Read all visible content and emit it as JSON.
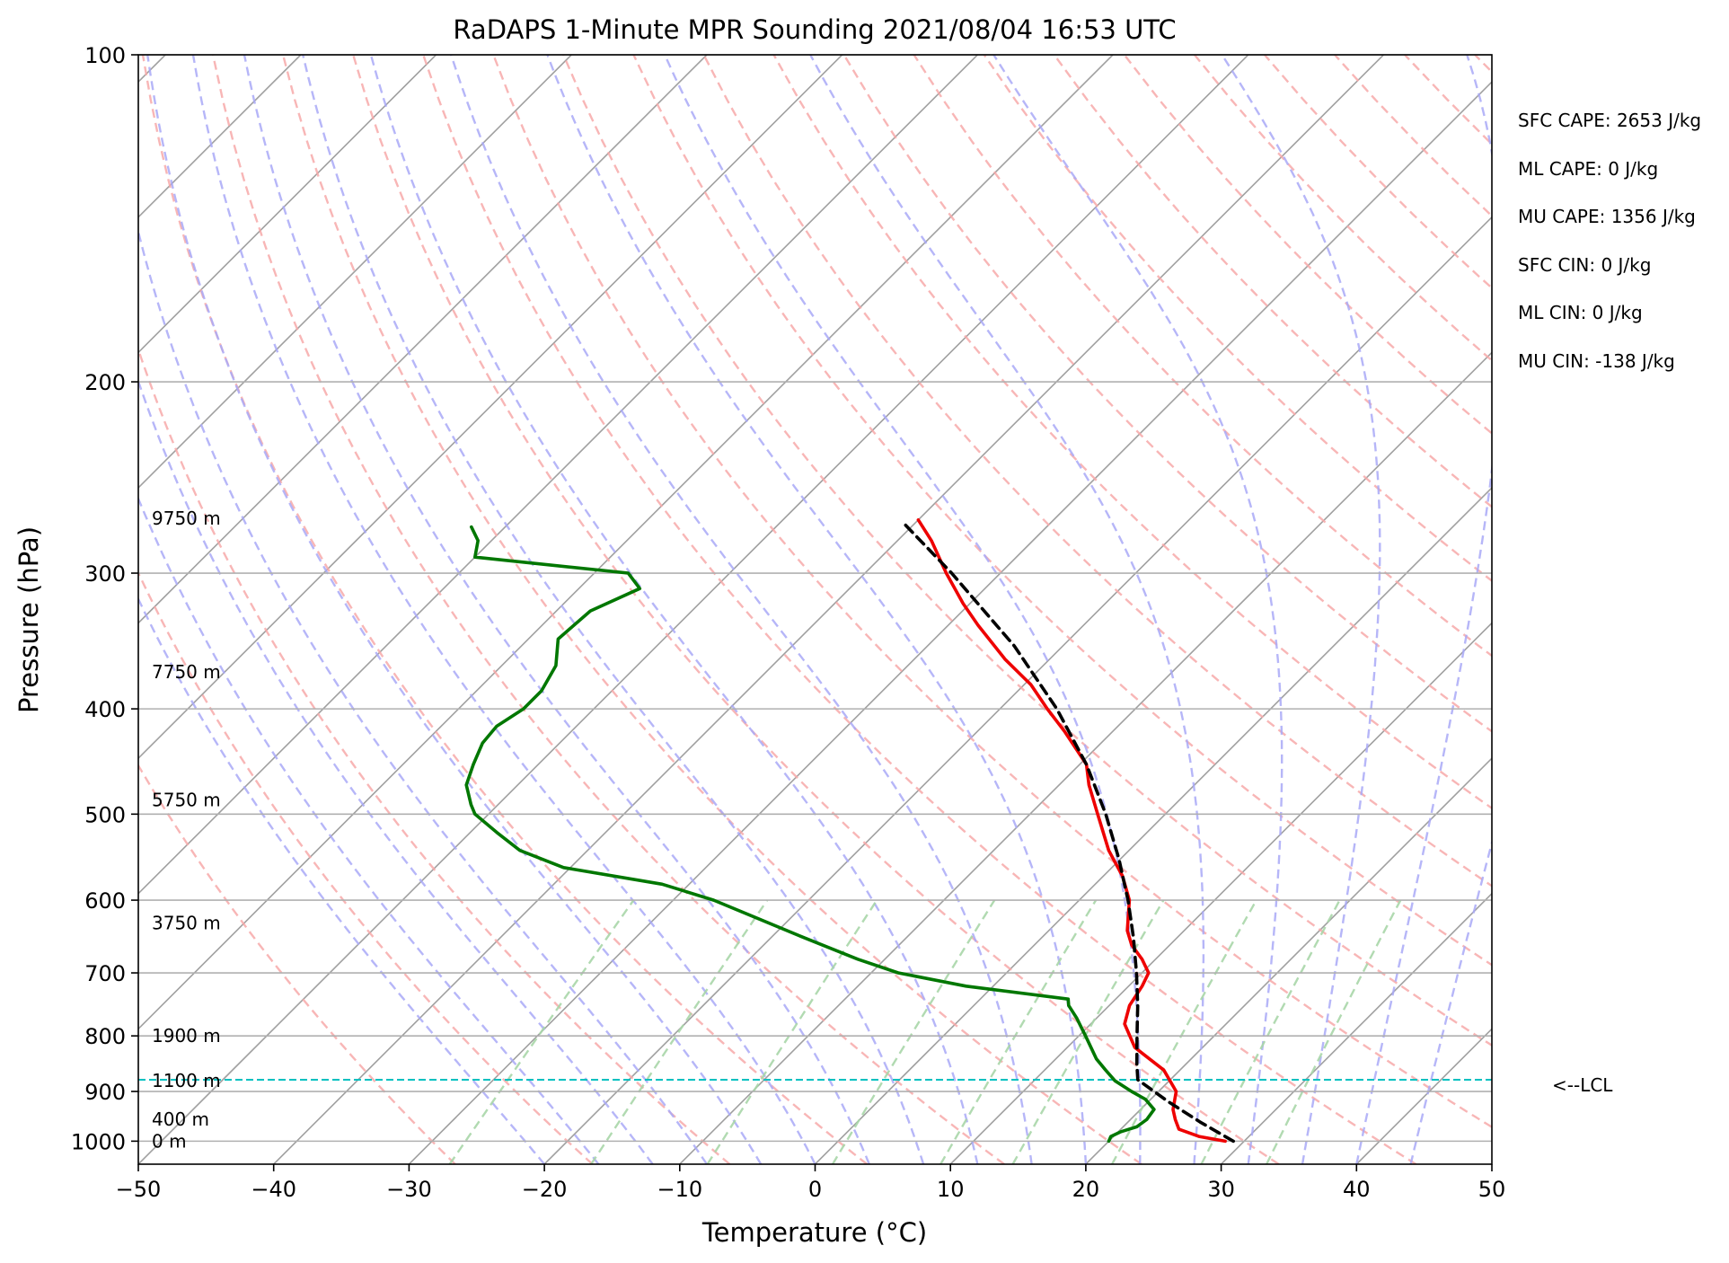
{
  "chart_data": {
    "type": "line",
    "title": "RaDAPS 1-Minute MPR Sounding 2021/08/04 16:53 UTC",
    "xlabel": "Temperature (°C)",
    "ylabel": "Pressure (hPa)",
    "xlim": [
      -50,
      50
    ],
    "ylim": [
      1050,
      100
    ],
    "y_scale": "log",
    "skew": true,
    "x_ticks": [
      -50,
      -40,
      -30,
      -20,
      -10,
      0,
      10,
      20,
      30,
      40,
      50
    ],
    "y_ticks": [
      100,
      200,
      300,
      400,
      500,
      600,
      700,
      800,
      900,
      1000
    ],
    "x_tick_labels": [
      "−50",
      "−40",
      "−30",
      "−20",
      "−10",
      "0",
      "10",
      "20",
      "30",
      "40",
      "50"
    ],
    "y_tick_labels": [
      "100",
      "200",
      "300",
      "400",
      "500",
      "600",
      "700",
      "800",
      "900",
      "1000"
    ],
    "grid": true,
    "colors": {
      "temperature": "#ee0000",
      "dewpoint": "#007700",
      "parcel": "#000000",
      "isotherm": "#a0a0a0",
      "dry_adiabat": "#f7a9a9",
      "moist_adiabat": "#a9a9f7",
      "mixing_ratio": "#a9d6a9",
      "lcl": "#00c0c0"
    },
    "series": [
      {
        "kind": "temperature",
        "points": [
          {
            "p": 1000,
            "t": 28.6
          },
          {
            "p": 990,
            "t": 26.3
          },
          {
            "p": 975,
            "t": 24.3
          },
          {
            "p": 955,
            "t": 23.3
          },
          {
            "p": 935,
            "t": 22.4
          },
          {
            "p": 900,
            "t": 21.3
          },
          {
            "p": 860,
            "t": 18.8
          },
          {
            "p": 820,
            "t": 15.0
          },
          {
            "p": 780,
            "t": 12.5
          },
          {
            "p": 750,
            "t": 11.5
          },
          {
            "p": 720,
            "t": 11.0
          },
          {
            "p": 700,
            "t": 10.5
          },
          {
            "p": 680,
            "t": 9.0
          },
          {
            "p": 660,
            "t": 7.2
          },
          {
            "p": 640,
            "t": 5.8
          },
          {
            "p": 600,
            "t": 3.7
          },
          {
            "p": 570,
            "t": 1.4
          },
          {
            "p": 540,
            "t": -1.5
          },
          {
            "p": 500,
            "t": -5.0
          },
          {
            "p": 470,
            "t": -7.8
          },
          {
            "p": 450,
            "t": -9.5
          },
          {
            "p": 420,
            "t": -13.5
          },
          {
            "p": 400,
            "t": -16.5
          },
          {
            "p": 380,
            "t": -19.5
          },
          {
            "p": 360,
            "t": -23.3
          },
          {
            "p": 335,
            "t": -27.8
          },
          {
            "p": 320,
            "t": -30.5
          },
          {
            "p": 300,
            "t": -34.0
          },
          {
            "p": 280,
            "t": -37.5
          },
          {
            "p": 268,
            "t": -40.0
          }
        ]
      },
      {
        "kind": "dewpoint",
        "points": [
          {
            "p": 1000,
            "t": 20.0
          },
          {
            "p": 990,
            "t": 19.8
          },
          {
            "p": 980,
            "t": 20.2
          },
          {
            "p": 970,
            "t": 21.0
          },
          {
            "p": 955,
            "t": 21.2
          },
          {
            "p": 935,
            "t": 21.0
          },
          {
            "p": 915,
            "t": 19.6
          },
          {
            "p": 900,
            "t": 18.0
          },
          {
            "p": 880,
            "t": 16.0
          },
          {
            "p": 860,
            "t": 14.5
          },
          {
            "p": 840,
            "t": 13.0
          },
          {
            "p": 800,
            "t": 10.5
          },
          {
            "p": 770,
            "t": 8.5
          },
          {
            "p": 750,
            "t": 7.0
          },
          {
            "p": 740,
            "t": 6.5
          },
          {
            "p": 720,
            "t": -2.0
          },
          {
            "p": 700,
            "t": -8.0
          },
          {
            "p": 680,
            "t": -12.0
          },
          {
            "p": 650,
            "t": -17.5
          },
          {
            "p": 600,
            "t": -27.0
          },
          {
            "p": 580,
            "t": -32.0
          },
          {
            "p": 560,
            "t": -40.5
          },
          {
            "p": 540,
            "t": -45.0
          },
          {
            "p": 520,
            "t": -48.0
          },
          {
            "p": 500,
            "t": -51.0
          },
          {
            "p": 490,
            "t": -52.0
          },
          {
            "p": 470,
            "t": -53.8
          },
          {
            "p": 450,
            "t": -54.8
          },
          {
            "p": 430,
            "t": -55.7
          },
          {
            "p": 415,
            "t": -55.9
          },
          {
            "p": 400,
            "t": -55.2
          },
          {
            "p": 385,
            "t": -55.2
          },
          {
            "p": 365,
            "t": -56.0
          },
          {
            "p": 345,
            "t": -57.8
          },
          {
            "p": 325,
            "t": -57.5
          },
          {
            "p": 310,
            "t": -55.5
          },
          {
            "p": 300,
            "t": -57.5
          },
          {
            "p": 290,
            "t": -70.0
          },
          {
            "p": 280,
            "t": -71.0
          },
          {
            "p": 272,
            "t": -72.5
          }
        ]
      },
      {
        "kind": "parcel",
        "points": [
          {
            "p": 1000,
            "t": 29.2
          },
          {
            "p": 960,
            "t": 25.3
          },
          {
            "p": 920,
            "t": 21.5
          },
          {
            "p": 878,
            "t": 17.6
          },
          {
            "p": 850,
            "t": 16.4
          },
          {
            "p": 800,
            "t": 14.3
          },
          {
            "p": 750,
            "t": 12.1
          },
          {
            "p": 700,
            "t": 9.6
          },
          {
            "p": 650,
            "t": 6.8
          },
          {
            "p": 600,
            "t": 3.6
          },
          {
            "p": 550,
            "t": -0.1
          },
          {
            "p": 500,
            "t": -4.4
          },
          {
            "p": 450,
            "t": -9.5
          },
          {
            "p": 400,
            "t": -15.8
          },
          {
            "p": 350,
            "t": -23.6
          },
          {
            "p": 300,
            "t": -33.6
          },
          {
            "p": 270,
            "t": -40.8
          }
        ]
      }
    ],
    "height_labels": [
      {
        "p": 1000,
        "text": "0 m"
      },
      {
        "p": 955,
        "text": "400 m"
      },
      {
        "p": 880,
        "text": "1100 m"
      },
      {
        "p": 800,
        "text": "1900 m"
      },
      {
        "p": 630,
        "text": "3750 m"
      },
      {
        "p": 485,
        "text": "5750 m"
      },
      {
        "p": 370,
        "text": "7750 m"
      },
      {
        "p": 267,
        "text": "9750 m"
      }
    ],
    "lcl_pressure": 878,
    "lcl_label": "<--LCL",
    "parameters": [
      "SFC CAPE: 2653 J/kg",
      "ML CAPE: 0 J/kg",
      "MU CAPE: 1356 J/kg",
      "SFC CIN: 0 J/kg",
      "ML CIN: 0 J/kg",
      "MU CIN: -138 J/kg"
    ]
  }
}
